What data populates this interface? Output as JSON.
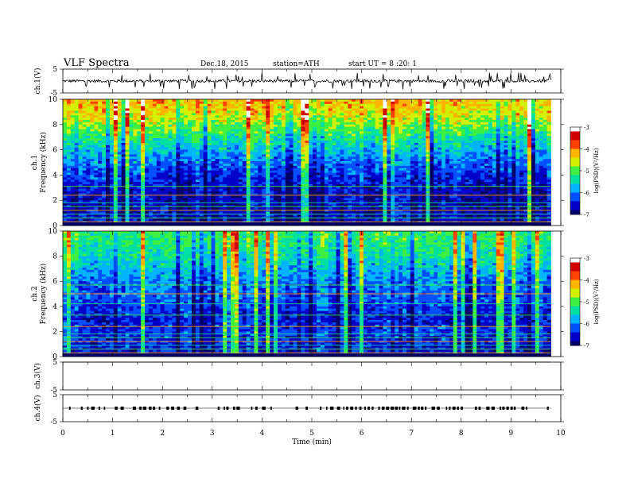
{
  "header": {
    "title": "VLF  Spectra",
    "date": "Dec.18, 2015",
    "station": "station=ATH",
    "start": "start  UT  =   8  :20: 1"
  },
  "chart_data": [
    {
      "type": "line",
      "panel": "ch1-waveform",
      "ylabel": "ch.1(V)",
      "yticks": [
        "5",
        "-5"
      ],
      "ylim": [
        -5,
        5
      ],
      "x_range_min": [
        0,
        9.8
      ],
      "baseline_v": 0.0,
      "spike_amplitude_v": 3.5
    },
    {
      "type": "heatmap",
      "panel": "ch1-spectrogram",
      "ylabel": "ch.1\nFrequency  (kHz)",
      "yticks": [
        "0",
        "2",
        "4",
        "6",
        "8",
        "10"
      ],
      "ylim": [
        0,
        10
      ],
      "x_range_min": [
        0,
        9.8
      ],
      "colorbar": {
        "label": "log(PSD)(V²/Hz)",
        "ticks": [
          "-3",
          "-4",
          "-5",
          "-6",
          "-7"
        ],
        "range": [
          -7,
          -3
        ]
      },
      "profile_log_psd": [
        [
          0,
          -6.6
        ],
        [
          2,
          -6.7
        ],
        [
          4,
          -6.4
        ],
        [
          5.5,
          -5.9
        ],
        [
          7,
          -5.3
        ],
        [
          8.5,
          -4.6
        ],
        [
          10,
          -4.2
        ]
      ],
      "tone_lines_khz": [
        0.3,
        0.6,
        0.9,
        1.2,
        1.5,
        1.8,
        2.4,
        3.1
      ]
    },
    {
      "type": "heatmap",
      "panel": "ch2-spectrogram",
      "ylabel": "ch.2\nFrequency  (kHz)",
      "yticks": [
        "0",
        "2",
        "4",
        "6",
        "8",
        "10"
      ],
      "ylim": [
        0,
        10
      ],
      "x_range_min": [
        0,
        9.8
      ],
      "colorbar": {
        "label": "log(PSD)(V²/Hz)",
        "ticks": [
          "-3",
          "-4",
          "-5",
          "-6",
          "-7"
        ],
        "range": [
          -7,
          -3
        ]
      },
      "profile_log_psd": [
        [
          0,
          -6.6
        ],
        [
          2,
          -6.3
        ],
        [
          3,
          -6.5
        ],
        [
          4.5,
          -6.2
        ],
        [
          6,
          -6.0
        ],
        [
          8,
          -5.4
        ],
        [
          10,
          -5.1
        ]
      ],
      "tone_lines_khz": [
        0.3,
        0.6,
        0.9,
        1.2,
        1.5,
        1.8,
        2.4,
        3.3,
        4.2,
        5.0,
        5.7
      ]
    },
    {
      "type": "line",
      "panel": "ch3-waveform",
      "ylabel": "ch.3(V)",
      "yticks": [
        "5",
        "-5"
      ],
      "ylim": [
        -5,
        5
      ],
      "x_range_min": [
        0,
        9.8
      ],
      "level_v": 5
    },
    {
      "type": "line",
      "panel": "ch4-waveform",
      "ylabel": "ch.4(V)",
      "yticks": [
        "5",
        "-5"
      ],
      "ylim": [
        -5,
        5
      ],
      "x_range_min": [
        0,
        9.8
      ],
      "level_v": 0
    }
  ],
  "xaxis": {
    "label": "Time  (min)",
    "ticks": [
      "0",
      "1",
      "2",
      "3",
      "4",
      "5",
      "6",
      "7",
      "8",
      "9",
      "10"
    ],
    "range": [
      0,
      10
    ]
  },
  "colormap": [
    "#00006a",
    "#0000c8",
    "#0050ff",
    "#00b4ff",
    "#00e0a0",
    "#40f040",
    "#d2f000",
    "#ffb400",
    "#ff4000",
    "#d00000",
    "#ffffff"
  ]
}
